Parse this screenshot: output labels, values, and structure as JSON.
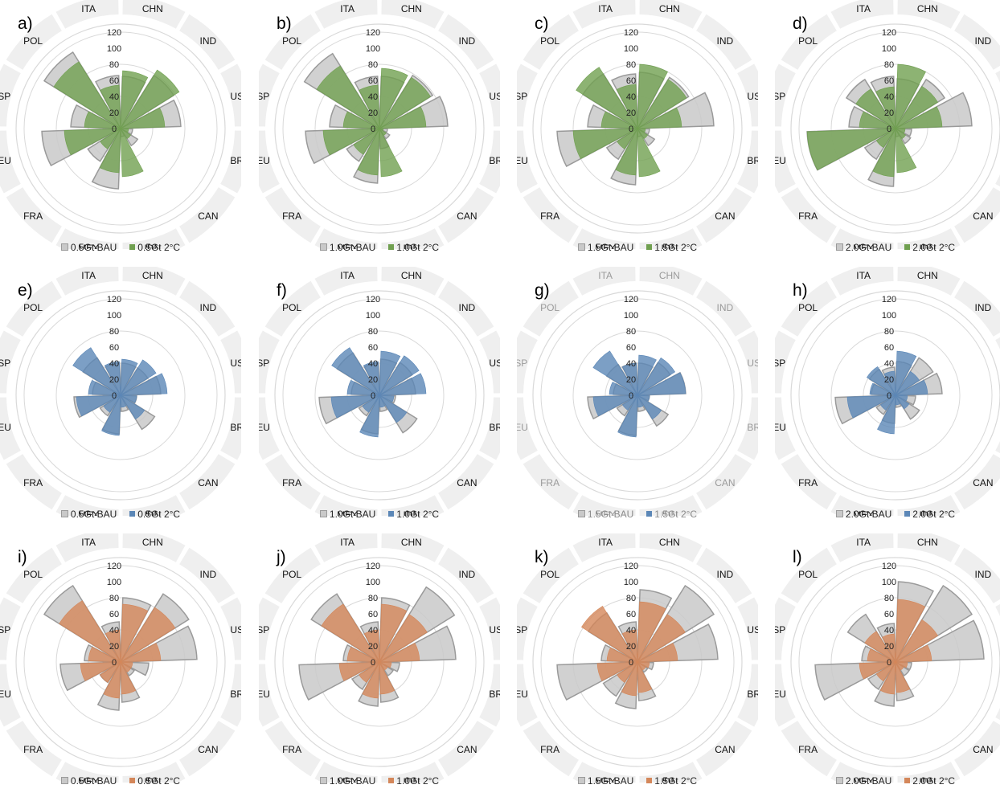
{
  "colors": {
    "ring": "#efefef",
    "grid": "#d9d9d9",
    "bau_fill": "#c9c9c9",
    "bau_edge": "#9a9a9a",
    "green": "#70a050",
    "blue": "#5b87b7",
    "orange": "#d4875a"
  },
  "chart_data": [
    {
      "label": "a)",
      "type": "polar-area",
      "categories": [
        "CHN",
        "IND",
        "USA",
        "BRA",
        "CAN",
        "IDN",
        "MEX",
        "FRA",
        "DEU",
        "ESP",
        "POL",
        "ITA"
      ],
      "rticks": [
        "0",
        "20",
        "40",
        "60",
        "80",
        "100",
        "120"
      ],
      "rlim": [
        0,
        120
      ],
      "color": "green",
      "dim": false,
      "series": [
        {
          "name": "0.5Gt BAU",
          "values": [
            65,
            78,
            75,
            15,
            25,
            10,
            75,
            48,
            98,
            62,
            112,
            66
          ]
        },
        {
          "name": "0.5Gt 2°C",
          "values": [
            72,
            86,
            55,
            10,
            15,
            60,
            55,
            30,
            70,
            45,
            98,
            54
          ]
        }
      ]
    },
    {
      "label": "b)",
      "type": "polar-area",
      "categories": [
        "CHN",
        "IND",
        "USA",
        "BRA",
        "CAN",
        "IDN",
        "MEX",
        "FRA",
        "DEU",
        "ESP",
        "POL",
        "ITA"
      ],
      "rticks": [
        "0",
        "20",
        "40",
        "60",
        "80",
        "100",
        "120"
      ],
      "rlim": [
        0,
        120
      ],
      "color": "green",
      "dim": false,
      "series": [
        {
          "name": "1.0Gt BAU",
          "values": [
            65,
            78,
            85,
            10,
            15,
            25,
            68,
            48,
            92,
            62,
            110,
            65
          ]
        },
        {
          "name": "1.0Gt 2°C",
          "values": [
            75,
            75,
            58,
            5,
            10,
            60,
            58,
            38,
            70,
            45,
            92,
            54
          ]
        }
      ]
    },
    {
      "label": "c)",
      "type": "polar-area",
      "categories": [
        "CHN",
        "IND",
        "USA",
        "BRA",
        "CAN",
        "IDN",
        "MEX",
        "FRA",
        "DEU",
        "ESP",
        "POL",
        "ITA"
      ],
      "rticks": [
        "0",
        "20",
        "40",
        "60",
        "80",
        "100",
        "120"
      ],
      "rlim": [
        0,
        120
      ],
      "color": "green",
      "dim": false,
      "series": [
        {
          "name": "1.5Gt BAU",
          "values": [
            70,
            75,
            95,
            15,
            25,
            10,
            70,
            45,
            100,
            62,
            80,
            68
          ]
        },
        {
          "name": "1.5Gt 2°C",
          "values": [
            80,
            72,
            55,
            10,
            15,
            60,
            58,
            30,
            80,
            45,
            90,
            55
          ]
        }
      ]
    },
    {
      "label": "d)",
      "type": "polar-area",
      "categories": [
        "CHN",
        "IND",
        "USA",
        "BRA",
        "CAN",
        "IDN",
        "MEX",
        "FRA",
        "DEU",
        "ESP",
        "POL",
        "ITA"
      ],
      "rticks": [
        "0",
        "20",
        "40",
        "60",
        "80",
        "100",
        "120"
      ],
      "rlim": [
        0,
        120
      ],
      "color": "green",
      "dim": false,
      "series": [
        {
          "name": "2.0Gt BAU",
          "values": [
            62,
            72,
            95,
            20,
            22,
            10,
            72,
            45,
            110,
            58,
            72,
            65
          ]
        },
        {
          "name": "2.0Gt 2°C",
          "values": [
            80,
            62,
            58,
            12,
            15,
            55,
            60,
            28,
            110,
            45,
            58,
            52
          ]
        }
      ]
    },
    {
      "label": "e)",
      "type": "polar-area",
      "categories": [
        "CHN",
        "IND",
        "USA",
        "BRA",
        "CAN",
        "IDN",
        "MEX",
        "FRA",
        "DEU",
        "ESP",
        "POL",
        "ITA"
      ],
      "rticks": [
        "0",
        "20",
        "40",
        "60",
        "80",
        "100",
        "120"
      ],
      "rlim": [
        0,
        120
      ],
      "color": "blue",
      "dim": false,
      "series": [
        {
          "name": "0.5Gt BAU",
          "values": [
            40,
            40,
            50,
            20,
            50,
            20,
            48,
            30,
            58,
            35,
            55,
            40
          ]
        },
        {
          "name": "0.5Gt 2°C",
          "values": [
            45,
            52,
            58,
            20,
            35,
            15,
            50,
            25,
            55,
            40,
            70,
            42
          ]
        }
      ]
    },
    {
      "label": "f)",
      "type": "polar-area",
      "categories": [
        "CHN",
        "IND",
        "USA",
        "BRA",
        "CAN",
        "IDN",
        "MEX",
        "FRA",
        "DEU",
        "ESP",
        "POL",
        "ITA"
      ],
      "rticks": [
        "0",
        "20",
        "40",
        "60",
        "80",
        "100",
        "120"
      ],
      "rlim": [
        0,
        120
      ],
      "color": "blue",
      "dim": false,
      "series": [
        {
          "name": "1.0Gt BAU",
          "values": [
            45,
            48,
            45,
            20,
            55,
            20,
            48,
            30,
            75,
            35,
            62,
            40
          ]
        },
        {
          "name": "1.0Gt 2°C",
          "values": [
            55,
            58,
            58,
            18,
            40,
            15,
            52,
            25,
            60,
            40,
            70,
            42
          ]
        }
      ]
    },
    {
      "label": "g)",
      "type": "polar-area",
      "categories": [
        "CHN",
        "IND",
        "USA",
        "BRA",
        "CAN",
        "IDN",
        "MEX",
        "FRA",
        "DEU",
        "ESP",
        "POL",
        "ITA"
      ],
      "rticks": [
        "0",
        "20",
        "40",
        "60",
        "80",
        "100",
        "120"
      ],
      "rlim": [
        0,
        120
      ],
      "color": "blue",
      "dim": true,
      "series": [
        {
          "name": "1.5Gt BAU",
          "values": [
            40,
            48,
            60,
            15,
            45,
            20,
            50,
            30,
            62,
            30,
            45,
            40
          ]
        },
        {
          "name": "1.5Gt 2°C",
          "values": [
            50,
            55,
            60,
            15,
            35,
            15,
            52,
            22,
            55,
            35,
            65,
            40
          ]
        }
      ]
    },
    {
      "label": "h)",
      "type": "polar-area",
      "categories": [
        "CHN",
        "IND",
        "USA",
        "BRA",
        "CAN",
        "IDN",
        "MEX",
        "FRA",
        "DEU",
        "ESP",
        "POL",
        "ITA"
      ],
      "rticks": [
        "0",
        "20",
        "40",
        "60",
        "80",
        "100",
        "120"
      ],
      "rlim": [
        0,
        120
      ],
      "color": "blue",
      "dim": false,
      "series": [
        {
          "name": "2.0Gt BAU",
          "values": [
            42,
            55,
            58,
            25,
            35,
            15,
            35,
            28,
            75,
            30,
            38,
            35
          ]
        },
        {
          "name": "2.0Gt 2°C",
          "values": [
            55,
            35,
            40,
            15,
            20,
            12,
            48,
            22,
            60,
            32,
            42,
            30
          ]
        }
      ]
    },
    {
      "label": "i)",
      "type": "polar-area",
      "categories": [
        "CHN",
        "IND",
        "USA",
        "BRA",
        "CAN",
        "IDN",
        "MEX",
        "FRA",
        "DEU",
        "ESP",
        "POL",
        "ITA"
      ],
      "rticks": [
        "0",
        "20",
        "40",
        "60",
        "80",
        "100",
        "120"
      ],
      "rlim": [
        0,
        120
      ],
      "color": "orange",
      "dim": false,
      "series": [
        {
          "name": "0.5Gt BAU",
          "values": [
            80,
            100,
            95,
            35,
            20,
            50,
            60,
            30,
            75,
            45,
            112,
            50
          ]
        },
        {
          "name": "0.5Gt 2°C",
          "values": [
            72,
            80,
            50,
            15,
            15,
            40,
            45,
            30,
            50,
            40,
            90,
            40
          ]
        }
      ]
    },
    {
      "label": "j)",
      "type": "polar-area",
      "categories": [
        "CHN",
        "IND",
        "USA",
        "BRA",
        "CAN",
        "IDN",
        "MEX",
        "FRA",
        "DEU",
        "ESP",
        "POL",
        "ITA"
      ],
      "rticks": [
        "0",
        "20",
        "40",
        "60",
        "80",
        "100",
        "120"
      ],
      "rlim": [
        0,
        120
      ],
      "color": "orange",
      "dim": false,
      "series": [
        {
          "name": "1.0Gt BAU",
          "values": [
            80,
            110,
            95,
            25,
            20,
            50,
            55,
            40,
            100,
            45,
            100,
            50
          ]
        },
        {
          "name": "1.0Gt 2°C",
          "values": [
            72,
            70,
            50,
            15,
            12,
            40,
            45,
            30,
            50,
            40,
            85,
            40
          ]
        }
      ]
    },
    {
      "label": "k)",
      "type": "polar-area",
      "categories": [
        "CHN",
        "IND",
        "USA",
        "BRA",
        "CAN",
        "IDN",
        "MEX",
        "FRA",
        "DEU",
        "ESP",
        "POL",
        "ITA"
      ],
      "rticks": [
        "0",
        "20",
        "40",
        "60",
        "80",
        "100",
        "120"
      ],
      "rlim": [
        0,
        120
      ],
      "color": "orange",
      "dim": false,
      "series": [
        {
          "name": "1.5Gt BAU",
          "values": [
            90,
            112,
            100,
            20,
            15,
            48,
            58,
            50,
            100,
            45,
            72,
            50
          ]
        },
        {
          "name": "1.5Gt 2°C",
          "values": [
            75,
            70,
            50,
            15,
            12,
            38,
            42,
            30,
            50,
            38,
            82,
            40
          ]
        }
      ]
    },
    {
      "label": "l)",
      "type": "polar-area",
      "categories": [
        "CHN",
        "IND",
        "USA",
        "BRA",
        "CAN",
        "IDN",
        "MEX",
        "FRA",
        "DEU",
        "ESP",
        "POL",
        "ITA"
      ],
      "rticks": [
        "0",
        "20",
        "40",
        "60",
        "80",
        "100",
        "120"
      ],
      "rlim": [
        0,
        120
      ],
      "color": "orange",
      "dim": false,
      "series": [
        {
          "name": "2.0Gt BAU",
          "values": [
            100,
            112,
            110,
            20,
            20,
            48,
            55,
            40,
            100,
            42,
            70,
            48
          ]
        },
        {
          "name": "2.0Gt 2°C",
          "values": [
            78,
            62,
            45,
            15,
            12,
            38,
            40,
            28,
            45,
            35,
            45,
            35
          ]
        }
      ]
    }
  ]
}
